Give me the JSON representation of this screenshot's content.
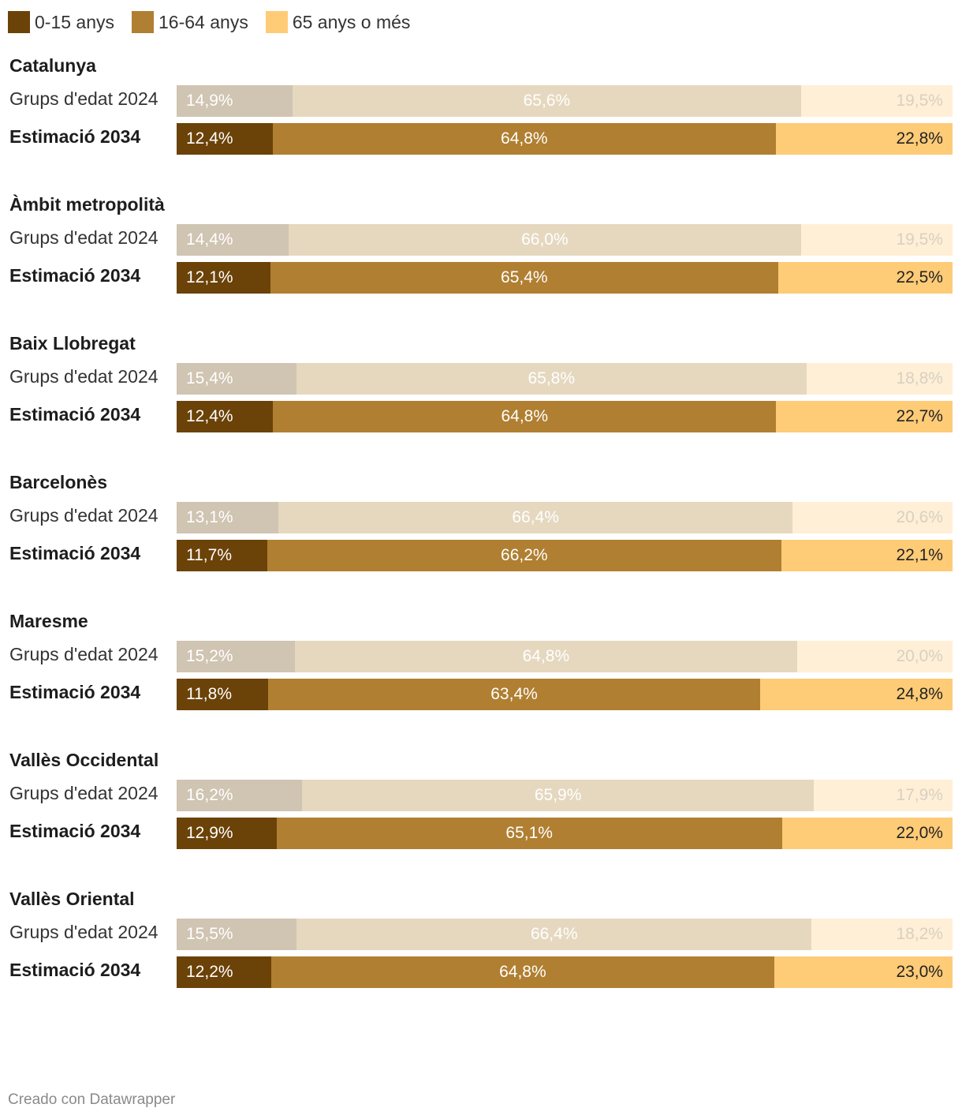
{
  "legend": [
    {
      "label": "0-15 anys",
      "color": "#6b4208"
    },
    {
      "label": "16-64 anys",
      "color": "#b07f31"
    },
    {
      "label": "65 anys o més",
      "color": "#fecb77"
    }
  ],
  "faded_colors": [
    "#d0c4b2",
    "#e5d8bf",
    "#ffefd6"
  ],
  "faded_text_color": "#ffffff",
  "faded_last_text_color": "#d8d0c2",
  "chart_data": {
    "type": "bar",
    "orientation": "horizontal",
    "stacked": true,
    "series_names": [
      "0-15 anys",
      "16-64 anys",
      "65 anys o més"
    ],
    "groups": [
      {
        "title": "Catalunya",
        "rows": [
          {
            "label": "Grups d'edat 2024",
            "values": [
              14.9,
              65.6,
              19.5
            ],
            "labels": [
              "14,9%",
              "65,6%",
              "19,5%"
            ]
          },
          {
            "label": "Estimació 2034",
            "values": [
              12.4,
              64.8,
              22.8
            ],
            "labels": [
              "12,4%",
              "64,8%",
              "22,8%"
            ]
          }
        ]
      },
      {
        "title": "Àmbit metropolità",
        "rows": [
          {
            "label": "Grups d'edat 2024",
            "values": [
              14.4,
              66.0,
              19.5
            ],
            "labels": [
              "14,4%",
              "66,0%",
              "19,5%"
            ]
          },
          {
            "label": "Estimació 2034",
            "values": [
              12.1,
              65.4,
              22.5
            ],
            "labels": [
              "12,1%",
              "65,4%",
              "22,5%"
            ]
          }
        ]
      },
      {
        "title": "Baix Llobregat",
        "rows": [
          {
            "label": "Grups d'edat 2024",
            "values": [
              15.4,
              65.8,
              18.8
            ],
            "labels": [
              "15,4%",
              "65,8%",
              "18,8%"
            ]
          },
          {
            "label": "Estimació 2034",
            "values": [
              12.4,
              64.8,
              22.7
            ],
            "labels": [
              "12,4%",
              "64,8%",
              "22,7%"
            ]
          }
        ]
      },
      {
        "title": "Barcelonès",
        "rows": [
          {
            "label": "Grups d'edat 2024",
            "values": [
              13.1,
              66.4,
              20.6
            ],
            "labels": [
              "13,1%",
              "66,4%",
              "20,6%"
            ]
          },
          {
            "label": "Estimació 2034",
            "values": [
              11.7,
              66.2,
              22.1
            ],
            "labels": [
              "11,7%",
              "66,2%",
              "22,1%"
            ]
          }
        ]
      },
      {
        "title": "Maresme",
        "rows": [
          {
            "label": "Grups d'edat 2024",
            "values": [
              15.2,
              64.8,
              20.0
            ],
            "labels": [
              "15,2%",
              "64,8%",
              "20,0%"
            ]
          },
          {
            "label": "Estimació 2034",
            "values": [
              11.8,
              63.4,
              24.8
            ],
            "labels": [
              "11,8%",
              "63,4%",
              "24,8%"
            ]
          }
        ]
      },
      {
        "title": "Vallès Occidental",
        "rows": [
          {
            "label": "Grups d'edat 2024",
            "values": [
              16.2,
              65.9,
              17.9
            ],
            "labels": [
              "16,2%",
              "65,9%",
              "17,9%"
            ]
          },
          {
            "label": "Estimació 2034",
            "values": [
              12.9,
              65.1,
              22.0
            ],
            "labels": [
              "12,9%",
              "65,1%",
              "22,0%"
            ]
          }
        ]
      },
      {
        "title": "Vallès Oriental",
        "rows": [
          {
            "label": "Grups d'edat 2024",
            "values": [
              15.5,
              66.4,
              18.2
            ],
            "labels": [
              "15,5%",
              "66,4%",
              "18,2%"
            ]
          },
          {
            "label": "Estimació 2034",
            "values": [
              12.2,
              64.8,
              23.0
            ],
            "labels": [
              "12,2%",
              "64,8%",
              "23,0%"
            ]
          }
        ]
      }
    ]
  },
  "footer": "Creado con Datawrapper"
}
